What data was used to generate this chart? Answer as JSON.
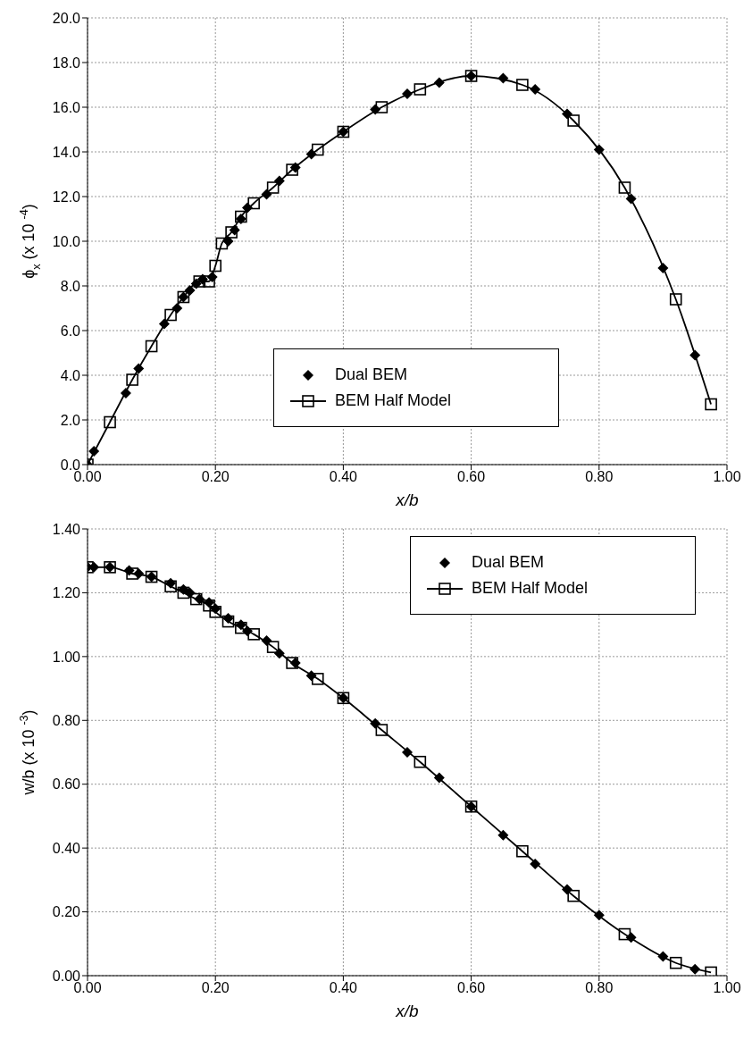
{
  "chart_data": [
    {
      "type": "line",
      "xlabel": "x/b",
      "ylabel": "ϕ$_{x}$ (x 10 $^{-4}$)",
      "xlim": [
        0,
        1
      ],
      "ylim": [
        0,
        20
      ],
      "xticks": [
        {
          "value": 0,
          "label": "0.00"
        },
        {
          "value": 0.2,
          "label": "0.20"
        },
        {
          "value": 0.4,
          "label": "0.40"
        },
        {
          "value": 0.6,
          "label": "0.60"
        },
        {
          "value": 0.8,
          "label": "0.80"
        },
        {
          "value": 1,
          "label": "1.00"
        }
      ],
      "yticks": [
        {
          "value": 0,
          "label": "0.0"
        },
        {
          "value": 2,
          "label": "2.0"
        },
        {
          "value": 4,
          "label": "4.0"
        },
        {
          "value": 6,
          "label": "6.0"
        },
        {
          "value": 8,
          "label": "8.0"
        },
        {
          "value": 10,
          "label": "10.0"
        },
        {
          "value": 12,
          "label": "12.0"
        },
        {
          "value": 14,
          "label": "14.0"
        },
        {
          "value": 16,
          "label": "16.0"
        },
        {
          "value": 18,
          "label": "18.0"
        },
        {
          "value": 20,
          "label": "20.0"
        }
      ],
      "grid": true,
      "legend": "bottom",
      "series": [
        {
          "name": "Dual BEM",
          "type": "scatter",
          "marker": "diamond",
          "color": "#000000",
          "x": [
            0,
            0.01,
            0.06,
            0.08,
            0.12,
            0.14,
            0.15,
            0.16,
            0.17,
            0.18,
            0.195,
            0.22,
            0.23,
            0.24,
            0.25,
            0.28,
            0.3,
            0.325,
            0.35,
            0.4,
            0.45,
            0.5,
            0.55,
            0.6,
            0.65,
            0.7,
            0.75,
            0.8,
            0.85,
            0.9,
            0.95
          ],
          "values": [
            0,
            0.6,
            3.2,
            4.3,
            6.3,
            7.0,
            7.5,
            7.8,
            8.1,
            8.3,
            8.4,
            10.0,
            10.5,
            11.0,
            11.5,
            12.1,
            12.7,
            13.3,
            13.9,
            14.9,
            15.9,
            16.6,
            17.1,
            17.4,
            17.3,
            16.8,
            15.7,
            14.1,
            11.9,
            8.8,
            4.9
          ]
        },
        {
          "name": "BEM Half Model",
          "type": "line",
          "marker": "square",
          "line_style": "solid",
          "color": "#000000",
          "x": [
            0,
            0.035,
            0.07,
            0.1,
            0.13,
            0.15,
            0.175,
            0.19,
            0.2,
            0.21,
            0.225,
            0.24,
            0.26,
            0.29,
            0.32,
            0.36,
            0.4,
            0.46,
            0.52,
            0.6,
            0.68,
            0.76,
            0.84,
            0.92,
            0.975
          ],
          "values": [
            0,
            1.9,
            3.8,
            5.3,
            6.7,
            7.5,
            8.2,
            8.2,
            8.9,
            9.9,
            10.4,
            11.1,
            11.7,
            12.4,
            13.2,
            14.1,
            14.9,
            16.0,
            16.8,
            17.4,
            17.0,
            15.4,
            12.4,
            7.4,
            2.7
          ]
        }
      ]
    },
    {
      "type": "line",
      "xlabel": "x/b",
      "ylabel": "w/b (x 10 $^{-3}$)",
      "xlim": [
        0,
        1
      ],
      "ylim": [
        0,
        1.4
      ],
      "xticks": [
        {
          "value": 0,
          "label": "0.00"
        },
        {
          "value": 0.2,
          "label": "0.20"
        },
        {
          "value": 0.4,
          "label": "0.40"
        },
        {
          "value": 0.6,
          "label": "0.60"
        },
        {
          "value": 0.8,
          "label": "0.80"
        },
        {
          "value": 1,
          "label": "1.00"
        }
      ],
      "yticks": [
        {
          "value": 0,
          "label": "0.00"
        },
        {
          "value": 0.2,
          "label": "0.20"
        },
        {
          "value": 0.4,
          "label": "0.40"
        },
        {
          "value": 0.6,
          "label": "0.60"
        },
        {
          "value": 0.8,
          "label": "0.80"
        },
        {
          "value": 1,
          "label": "1.00"
        },
        {
          "value": 1.2,
          "label": "1.20"
        },
        {
          "value": 1.4,
          "label": "1.40"
        }
      ],
      "grid": true,
      "legend": "top right",
      "series": [
        {
          "name": "Dual BEM",
          "type": "scatter",
          "marker": "diamond",
          "color": "#000000",
          "x": [
            0,
            0.01,
            0.035,
            0.065,
            0.08,
            0.1,
            0.13,
            0.15,
            0.16,
            0.175,
            0.19,
            0.2,
            0.22,
            0.24,
            0.25,
            0.28,
            0.3,
            0.325,
            0.35,
            0.4,
            0.45,
            0.5,
            0.55,
            0.6,
            0.65,
            0.7,
            0.75,
            0.8,
            0.85,
            0.9,
            0.95
          ],
          "values": [
            1.28,
            1.28,
            1.28,
            1.27,
            1.26,
            1.25,
            1.23,
            1.21,
            1.2,
            1.18,
            1.17,
            1.15,
            1.12,
            1.1,
            1.08,
            1.05,
            1.01,
            0.98,
            0.94,
            0.87,
            0.79,
            0.7,
            0.62,
            0.53,
            0.44,
            0.35,
            0.27,
            0.19,
            0.12,
            0.06,
            0.02
          ]
        },
        {
          "name": "BEM Half Model",
          "type": "line",
          "marker": "square",
          "line_style": "solid",
          "color": "#000000",
          "x": [
            0,
            0.035,
            0.07,
            0.1,
            0.13,
            0.15,
            0.17,
            0.19,
            0.2,
            0.22,
            0.24,
            0.26,
            0.29,
            0.32,
            0.36,
            0.4,
            0.46,
            0.52,
            0.6,
            0.68,
            0.76,
            0.84,
            0.92,
            0.975
          ],
          "values": [
            1.28,
            1.28,
            1.26,
            1.25,
            1.22,
            1.2,
            1.18,
            1.16,
            1.14,
            1.11,
            1.09,
            1.07,
            1.03,
            0.98,
            0.93,
            0.87,
            0.77,
            0.67,
            0.53,
            0.39,
            0.25,
            0.13,
            0.04,
            0.01
          ]
        }
      ]
    }
  ]
}
